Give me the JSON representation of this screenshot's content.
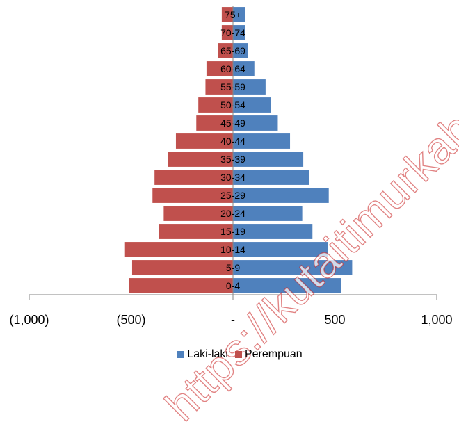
{
  "chart_data": {
    "type": "bar",
    "orientation": "horizontal",
    "subtype": "population-pyramid",
    "title": "",
    "xlabel": "",
    "ylabel": "",
    "categories": [
      "0-4",
      "5-9",
      "10-14",
      "15-19",
      "20-24",
      "25-29",
      "30-34",
      "35-39",
      "40-44",
      "45-49",
      "50-54",
      "55-59",
      "60-64",
      "65-69",
      "70-74",
      "75+"
    ],
    "series": [
      {
        "name": "Laki-laki",
        "color": "#4F81BD",
        "values": [
          530,
          585,
          465,
          390,
          340,
          470,
          375,
          345,
          280,
          220,
          185,
          160,
          105,
          75,
          60,
          60
        ]
      },
      {
        "name": "Perempuan",
        "color": "#C0504D",
        "values": [
          -510,
          -495,
          -530,
          -365,
          -340,
          -395,
          -385,
          -320,
          -280,
          -180,
          -170,
          -135,
          -130,
          -75,
          -55,
          -55
        ]
      }
    ],
    "xlim": [
      -1000,
      1000
    ],
    "xticks": [
      -1000,
      -500,
      0,
      500,
      1000
    ],
    "xtick_labels": [
      "(1,000)",
      "(500)",
      "-",
      "500",
      "1,000"
    ],
    "grid": false,
    "legend_position": "bottom"
  },
  "watermark": "https://kutaitimurkab.bps.go.id"
}
